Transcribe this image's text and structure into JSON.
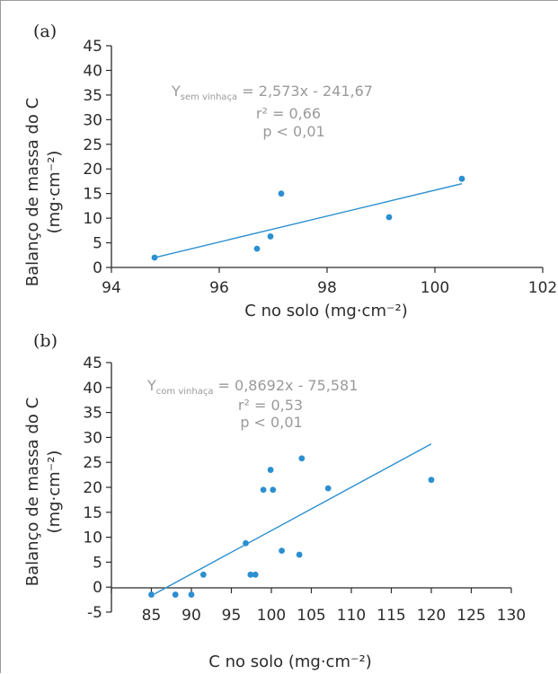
{
  "chart_data": [
    {
      "type": "scatter",
      "panel_label": "(a)",
      "xlabel": "C no solo (mg·cm⁻²)",
      "ylabel_line1": "Balanço de massa do C",
      "ylabel_line2": "(mg·cm⁻²)",
      "xlim": [
        94,
        102
      ],
      "ylim": [
        0,
        45
      ],
      "x_ticks": [
        94,
        96,
        98,
        100,
        102
      ],
      "y_ticks": [
        0,
        5,
        10,
        15,
        20,
        25,
        30,
        35,
        40,
        45
      ],
      "x_tick_labels": [
        "94",
        "96",
        "98",
        "100",
        "102"
      ],
      "y_tick_labels": [
        "0",
        "5",
        "10",
        "15",
        "20",
        "25",
        "30",
        "35",
        "40",
        "45"
      ],
      "points": [
        {
          "x": 94.8,
          "y": 2.0
        },
        {
          "x": 96.7,
          "y": 3.8
        },
        {
          "x": 96.95,
          "y": 6.3
        },
        {
          "x": 97.15,
          "y": 15.0
        },
        {
          "x": 99.15,
          "y": 10.2
        },
        {
          "x": 100.5,
          "y": 18.0
        }
      ],
      "trendline": {
        "x": [
          94.8,
          100.5
        ],
        "y": [
          2.0,
          17.0
        ]
      },
      "equation": {
        "y_symbol": "Y",
        "subscript": "sem vinhaça",
        "rhs": " = 2,573x - 241,67",
        "r2": "r² = 0,66",
        "p": "p < 0,01"
      },
      "colors": {
        "points": "#2b8fd0",
        "trendline": "#2b8fd0",
        "equation": "#9a9a9a",
        "axes": "#2b2b2b"
      },
      "grid": false,
      "legend": "none"
    },
    {
      "type": "scatter",
      "panel_label": "(b)",
      "xlabel": "C no solo (mg·cm⁻²)",
      "ylabel_line1": "Balanço de massa do C",
      "ylabel_line2": "(mg·cm⁻²)",
      "xlim": [
        80,
        130
      ],
      "ylim": [
        -5,
        45
      ],
      "x_ticks": [
        80,
        85,
        90,
        95,
        100,
        105,
        110,
        115,
        120,
        125,
        130
      ],
      "x_tick_labels": [
        "",
        "85",
        "90",
        "95",
        "100",
        "105",
        "110",
        "115",
        "120",
        "125",
        "130"
      ],
      "y_ticks": [
        -5,
        0,
        5,
        10,
        15,
        20,
        25,
        30,
        35,
        40,
        45
      ],
      "y_tick_labels": [
        "-5",
        "0",
        "5",
        "10",
        "15",
        "20",
        "25",
        "30",
        "35",
        "40",
        "45"
      ],
      "points": [
        {
          "x": 85.0,
          "y": -1.5
        },
        {
          "x": 88.0,
          "y": -1.5
        },
        {
          "x": 90.0,
          "y": -1.5
        },
        {
          "x": 91.5,
          "y": 2.5
        },
        {
          "x": 96.8,
          "y": 8.8
        },
        {
          "x": 97.4,
          "y": 2.5
        },
        {
          "x": 98.0,
          "y": 2.5
        },
        {
          "x": 99.0,
          "y": 19.5
        },
        {
          "x": 99.9,
          "y": 23.5
        },
        {
          "x": 100.2,
          "y": 19.5
        },
        {
          "x": 101.3,
          "y": 7.3
        },
        {
          "x": 103.5,
          "y": 6.5
        },
        {
          "x": 103.8,
          "y": 25.8
        },
        {
          "x": 107.1,
          "y": 19.8
        },
        {
          "x": 120.0,
          "y": 21.5
        }
      ],
      "trendline": {
        "x": [
          85.4,
          120.0
        ],
        "y": [
          -1.35,
          28.7
        ]
      },
      "equation": {
        "y_symbol": "Y",
        "subscript": "com vinhaça",
        "rhs": " = 0,8692x - 75,581",
        "r2": "r² = 0,53",
        "p": "p < 0,01"
      },
      "colors": {
        "points": "#2b8fd0",
        "trendline": "#2b8fd0",
        "equation": "#9a9a9a",
        "axes": "#2b2b2b"
      },
      "grid": false,
      "legend": "none"
    }
  ]
}
